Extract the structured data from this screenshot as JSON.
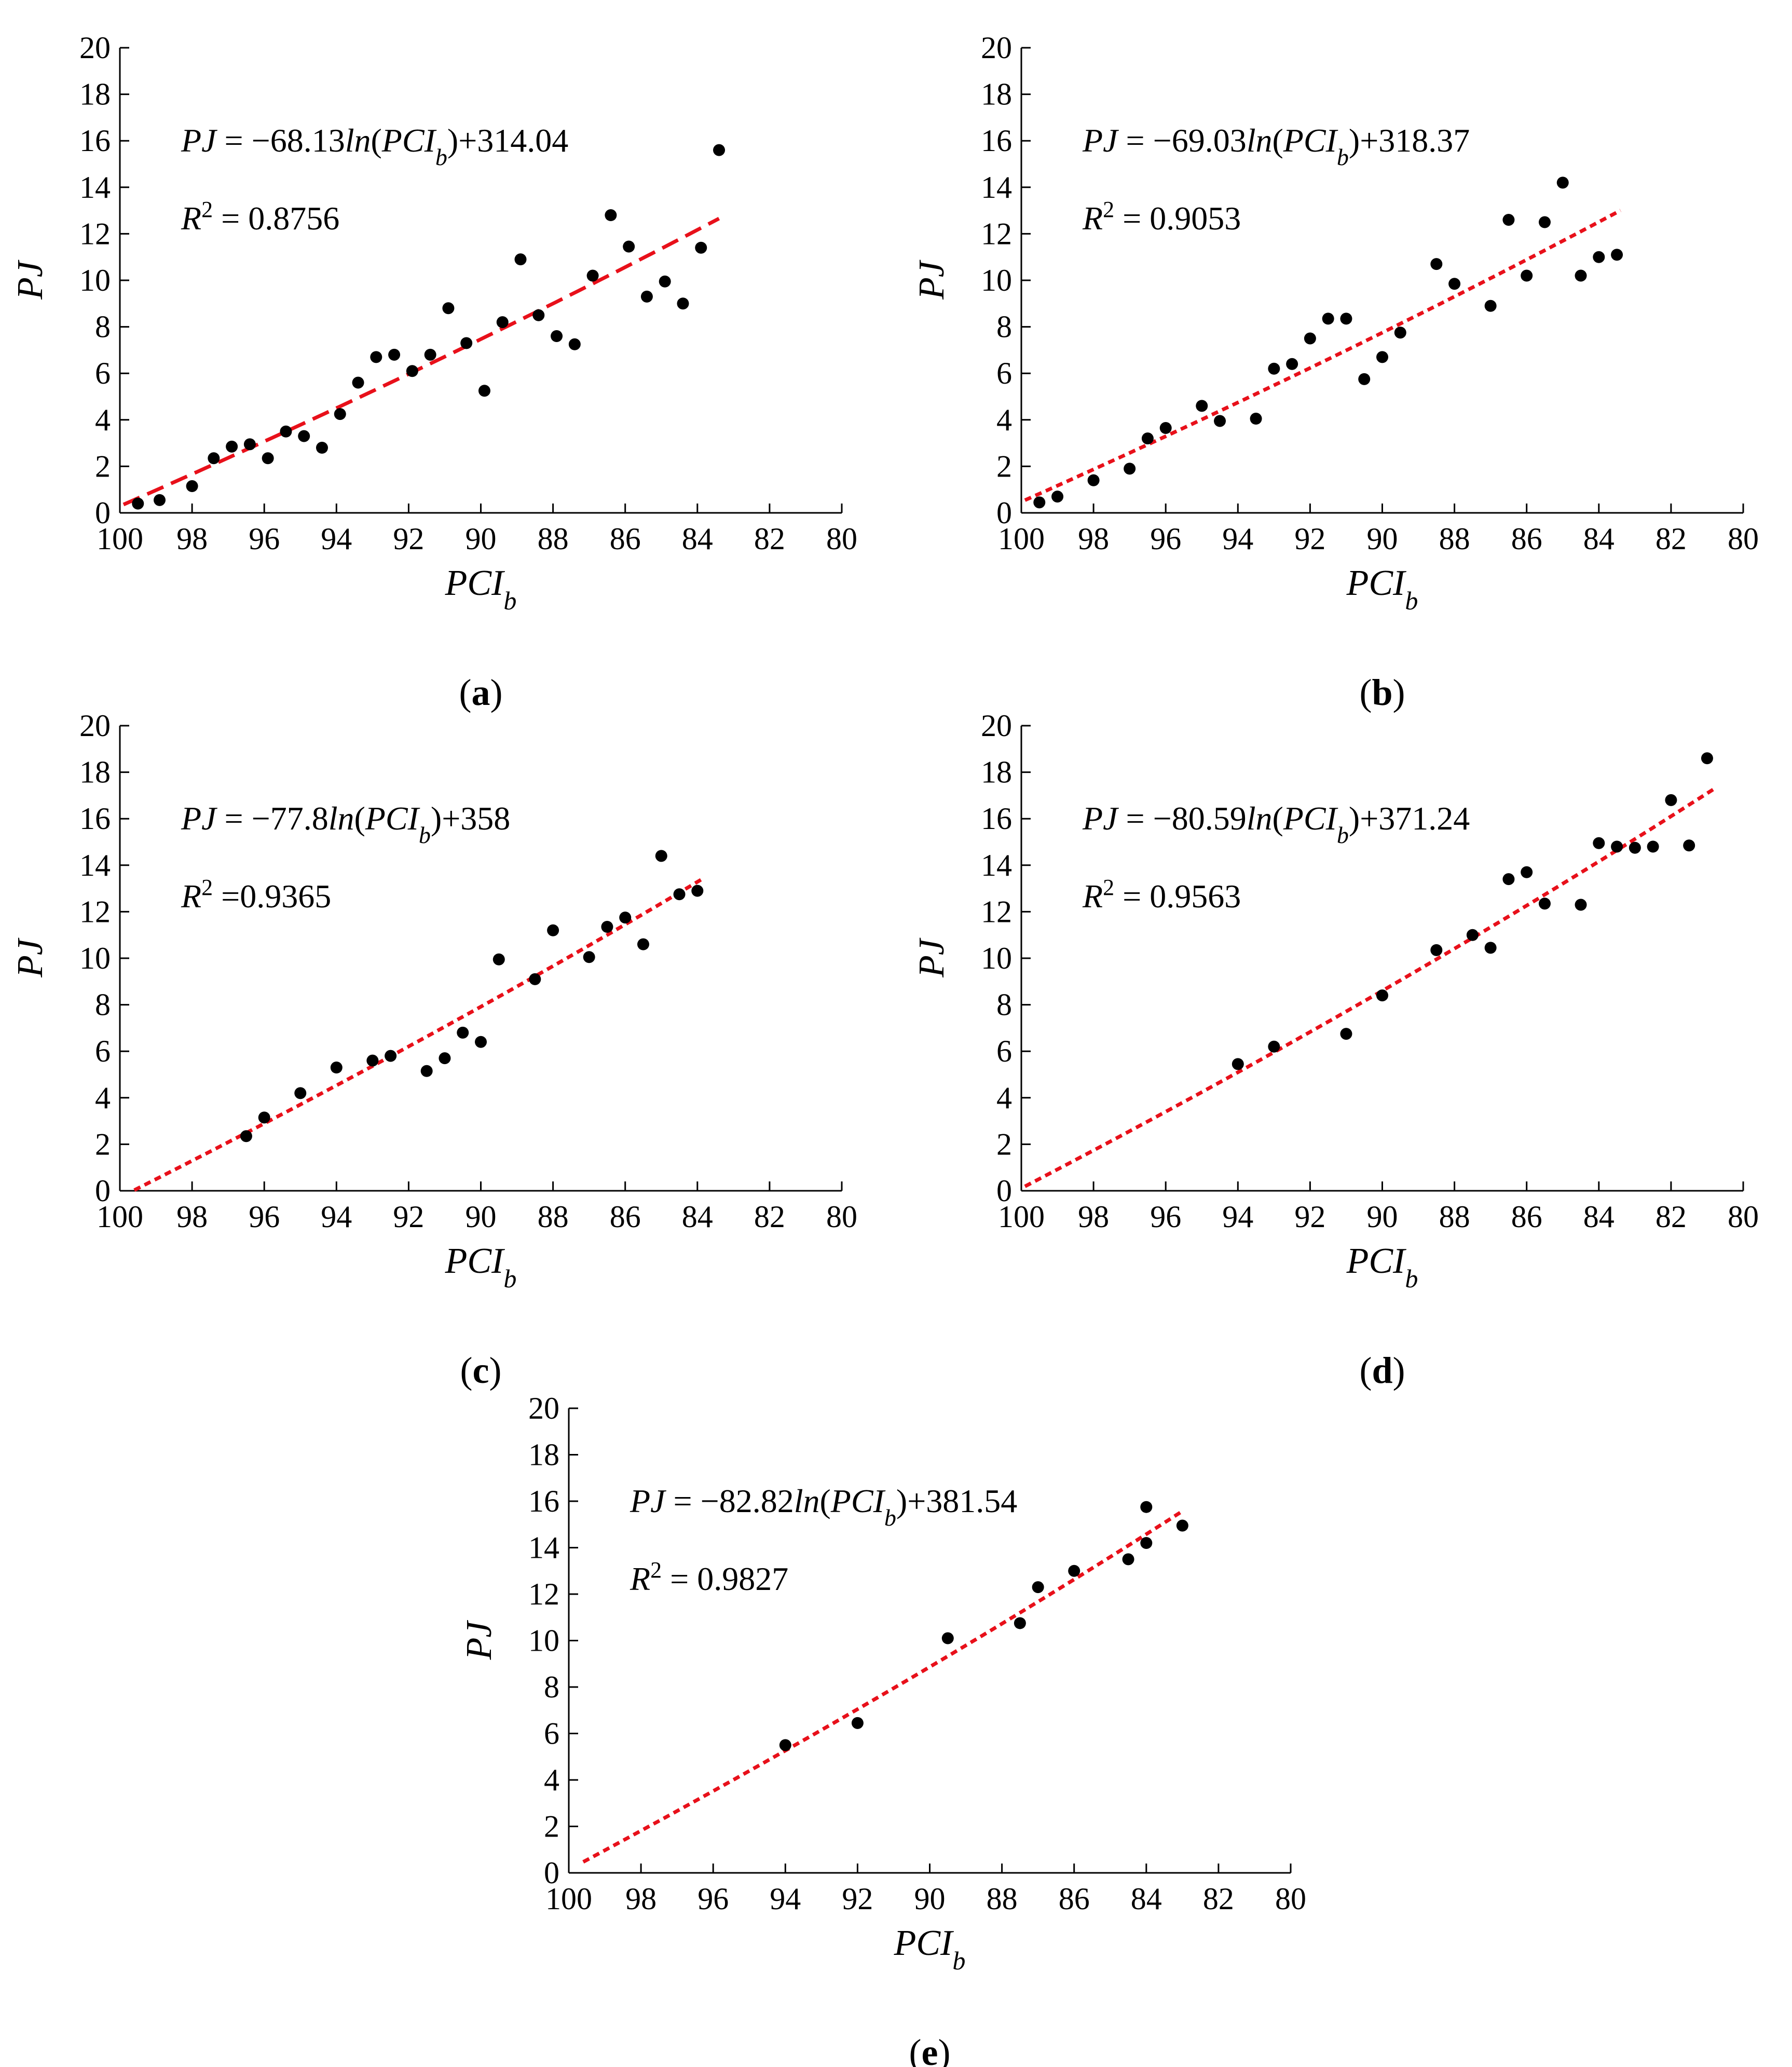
{
  "chart_data": [
    {
      "id": "a",
      "type": "scatter",
      "panel_label": "a",
      "title": "",
      "xlabel": "PCI",
      "xlabel_sub": "b",
      "ylabel": "PJ",
      "xlim": [
        100,
        80
      ],
      "ylim": [
        0,
        20
      ],
      "xticks": [
        100,
        98,
        96,
        94,
        92,
        90,
        88,
        86,
        84,
        82,
        80
      ],
      "yticks": [
        0,
        2,
        4,
        6,
        8,
        10,
        12,
        14,
        16,
        18,
        20
      ],
      "equation": {
        "lhs": "PJ",
        "coef": "−68.13",
        "fn": "ln",
        "arg": "PCI",
        "arg_sub": "b",
        "const": "+314.04"
      },
      "r2": {
        "prefix": "R",
        "sup": "2",
        "value": " = 0.8756"
      },
      "fit": {
        "a": -68.13,
        "b": 314.04,
        "x_range": [
          99.9,
          83.4
        ],
        "style": "dashed"
      },
      "points": [
        [
          99.5,
          0.4
        ],
        [
          98.9,
          0.55
        ],
        [
          98,
          1.15
        ],
        [
          97.4,
          2.35
        ],
        [
          96.9,
          2.85
        ],
        [
          96.4,
          2.95
        ],
        [
          95.9,
          2.35
        ],
        [
          95.4,
          3.5
        ],
        [
          94.9,
          3.3
        ],
        [
          94.4,
          2.8
        ],
        [
          93.9,
          4.25
        ],
        [
          93.4,
          5.6
        ],
        [
          92.9,
          6.7
        ],
        [
          92.4,
          6.8
        ],
        [
          91.9,
          6.1
        ],
        [
          91.4,
          6.8
        ],
        [
          90.9,
          8.8
        ],
        [
          90.4,
          7.3
        ],
        [
          89.9,
          5.25
        ],
        [
          89.4,
          8.2
        ],
        [
          88.9,
          10.9
        ],
        [
          88.4,
          8.5
        ],
        [
          87.9,
          7.6
        ],
        [
          87.4,
          7.25
        ],
        [
          86.9,
          10.2
        ],
        [
          86.4,
          12.8
        ],
        [
          85.9,
          11.45
        ],
        [
          85.4,
          9.3
        ],
        [
          84.9,
          9.95
        ],
        [
          84.4,
          9
        ],
        [
          83.9,
          11.4
        ],
        [
          83.4,
          15.6
        ]
      ]
    },
    {
      "id": "b",
      "type": "scatter",
      "panel_label": "b",
      "title": "",
      "xlabel": "PCI",
      "xlabel_sub": "b",
      "ylabel": "PJ",
      "xlim": [
        100,
        80
      ],
      "ylim": [
        0,
        20
      ],
      "xticks": [
        100,
        98,
        96,
        94,
        92,
        90,
        88,
        86,
        84,
        82,
        80
      ],
      "yticks": [
        0,
        2,
        4,
        6,
        8,
        10,
        12,
        14,
        16,
        18,
        20
      ],
      "equation": {
        "lhs": "PJ",
        "coef": "−69.03",
        "fn": "ln",
        "arg": "PCI",
        "arg_sub": "b",
        "const": "+318.37"
      },
      "r2": {
        "prefix": "R",
        "sup": "2",
        "value": " = 0.9053"
      },
      "fit": {
        "a": -69.03,
        "b": 318.37,
        "x_range": [
          99.9,
          83.4
        ],
        "style": "dotted"
      },
      "points": [
        [
          99.5,
          0.45
        ],
        [
          99,
          0.7
        ],
        [
          98,
          1.4
        ],
        [
          97,
          1.9
        ],
        [
          96.5,
          3.2
        ],
        [
          96,
          3.65
        ],
        [
          95,
          4.6
        ],
        [
          94.5,
          3.95
        ],
        [
          93.5,
          4.05
        ],
        [
          93,
          6.2
        ],
        [
          92.5,
          6.4
        ],
        [
          92,
          7.5
        ],
        [
          91.5,
          8.35
        ],
        [
          91,
          8.35
        ],
        [
          90.5,
          5.75
        ],
        [
          90,
          6.7
        ],
        [
          89.5,
          7.75
        ],
        [
          88.5,
          10.7
        ],
        [
          88,
          9.85
        ],
        [
          87,
          8.9
        ],
        [
          86.5,
          12.6
        ],
        [
          86,
          10.2
        ],
        [
          85.5,
          12.5
        ],
        [
          85,
          14.2
        ],
        [
          84.5,
          10.2
        ],
        [
          84,
          11
        ],
        [
          83.5,
          11.1
        ]
      ]
    },
    {
      "id": "c",
      "type": "scatter",
      "panel_label": "c",
      "title": "",
      "xlabel": "PCI",
      "xlabel_sub": "b",
      "ylabel": "PJ",
      "xlim": [
        100,
        80
      ],
      "ylim": [
        0,
        20
      ],
      "xticks": [
        100,
        98,
        96,
        94,
        92,
        90,
        88,
        86,
        84,
        82,
        80
      ],
      "yticks": [
        0,
        2,
        4,
        6,
        8,
        10,
        12,
        14,
        16,
        18,
        20
      ],
      "equation": {
        "lhs": "PJ",
        "coef": "−77.8",
        "fn": "ln",
        "arg": "PCI",
        "arg_sub": "b",
        "const": "+358"
      },
      "r2": {
        "prefix": "R",
        "sup": "2",
        "value": " =0.9365"
      },
      "fit": {
        "a": -77.8,
        "b": 358,
        "x_range": [
          99.6,
          83.8
        ],
        "style": "dotted"
      },
      "points": [
        [
          96.5,
          2.35
        ],
        [
          96,
          3.15
        ],
        [
          95,
          4.2
        ],
        [
          94,
          5.3
        ],
        [
          93,
          5.6
        ],
        [
          92.5,
          5.8
        ],
        [
          91.5,
          5.15
        ],
        [
          91,
          5.7
        ],
        [
          90.5,
          6.8
        ],
        [
          90,
          6.4
        ],
        [
          89.5,
          9.95
        ],
        [
          88.5,
          9.1
        ],
        [
          88,
          11.2
        ],
        [
          87,
          10.05
        ],
        [
          86.5,
          11.35
        ],
        [
          86,
          11.75
        ],
        [
          85.5,
          10.6
        ],
        [
          85,
          14.4
        ],
        [
          84.5,
          12.75
        ],
        [
          84,
          12.9
        ]
      ]
    },
    {
      "id": "d",
      "type": "scatter",
      "panel_label": "d",
      "title": "",
      "xlabel": "PCI",
      "xlabel_sub": "b",
      "ylabel": "PJ",
      "xlim": [
        100,
        80
      ],
      "ylim": [
        0,
        20
      ],
      "xticks": [
        100,
        98,
        96,
        94,
        92,
        90,
        88,
        86,
        84,
        82,
        80
      ],
      "yticks": [
        0,
        2,
        4,
        6,
        8,
        10,
        12,
        14,
        16,
        18,
        20
      ],
      "equation": {
        "lhs": "PJ",
        "coef": "−80.59",
        "fn": "ln",
        "arg": "PCI",
        "arg_sub": "b",
        "const": "+371.24"
      },
      "r2": {
        "prefix": "R",
        "sup": "2",
        "value": " = 0.9563"
      },
      "fit": {
        "a": -80.59,
        "b": 371.24,
        "x_range": [
          99.9,
          80.8
        ],
        "style": "dotted"
      },
      "points": [
        [
          94,
          5.45
        ],
        [
          93,
          6.2
        ],
        [
          91,
          6.75
        ],
        [
          90,
          8.4
        ],
        [
          88.5,
          10.35
        ],
        [
          87.5,
          11
        ],
        [
          87,
          10.45
        ],
        [
          86.5,
          13.4
        ],
        [
          86,
          13.7
        ],
        [
          85.5,
          12.35
        ],
        [
          84.5,
          12.3
        ],
        [
          84,
          14.95
        ],
        [
          83.5,
          14.8
        ],
        [
          83,
          14.75
        ],
        [
          82.5,
          14.8
        ],
        [
          82,
          16.8
        ],
        [
          81.5,
          14.85
        ],
        [
          81,
          18.6
        ]
      ]
    },
    {
      "id": "e",
      "type": "scatter",
      "panel_label": "e",
      "title": "",
      "xlabel": "PCI",
      "xlabel_sub": "b",
      "ylabel": "PJ",
      "xlim": [
        100,
        80
      ],
      "ylim": [
        0,
        20
      ],
      "xticks": [
        100,
        98,
        96,
        94,
        92,
        90,
        88,
        86,
        84,
        82,
        80
      ],
      "yticks": [
        0,
        2,
        4,
        6,
        8,
        10,
        12,
        14,
        16,
        18,
        20
      ],
      "equation": {
        "lhs": "PJ",
        "coef": "−82.82",
        "fn": "ln",
        "arg": "PCI",
        "arg_sub": "b",
        "const": "+381.54"
      },
      "r2": {
        "prefix": "R",
        "sup": "2",
        "value": " = 0.9827"
      },
      "fit": {
        "a": -82.82,
        "b": 381.54,
        "x_range": [
          99.6,
          83.0
        ],
        "style": "dotted"
      },
      "points": [
        [
          94,
          5.5
        ],
        [
          92,
          6.45
        ],
        [
          89.5,
          10.1
        ],
        [
          87.5,
          10.75
        ],
        [
          87,
          12.3
        ],
        [
          86,
          13
        ],
        [
          84.5,
          13.5
        ],
        [
          84,
          14.2
        ],
        [
          84,
          15.75
        ],
        [
          83,
          14.95
        ]
      ]
    }
  ]
}
